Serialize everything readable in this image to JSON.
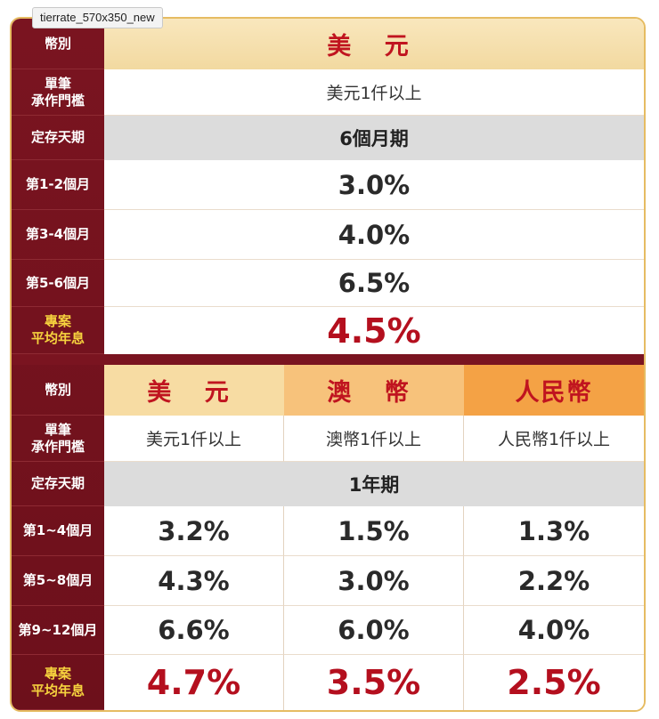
{
  "tab_label": "tierrate_570x350_new",
  "colors": {
    "sidebar": "#7a1420",
    "gold_text": "#f6d23e",
    "red_text": "#b40f1e"
  },
  "table1": {
    "labels": {
      "currency": "幣別",
      "threshold": "單筆\n承作門檻",
      "term": "定存天期",
      "m12": "第1-2個月",
      "m34": "第3-4個月",
      "m56": "第5-6個月",
      "avg": "專案\n平均年息"
    },
    "currency": "美 元",
    "threshold": "美元1仟以上",
    "term": "6個月期",
    "m12": "3.0%",
    "m34": "4.0%",
    "m56": "6.5%",
    "avg": "4.5%"
  },
  "table2": {
    "labels": {
      "currency": "幣別",
      "threshold": "單筆\n承作門檻",
      "term": "定存天期",
      "m14": "第1~4個月",
      "m58": "第5~8個月",
      "m912": "第9~12個月",
      "avg": "專案\n平均年息"
    },
    "term": "1年期",
    "columns": [
      {
        "name": "美 元",
        "threshold": "美元1仟以上",
        "m14": "3.2%",
        "m58": "4.3%",
        "m912": "6.6%",
        "avg": "4.7%"
      },
      {
        "name": "澳 幣",
        "threshold": "澳幣1仟以上",
        "m14": "1.5%",
        "m58": "3.0%",
        "m912": "6.0%",
        "avg": "3.5%"
      },
      {
        "name": "人民幣",
        "threshold": "人民幣1仟以上",
        "m14": "1.3%",
        "m58": "2.2%",
        "m912": "4.0%",
        "avg": "2.5%"
      }
    ]
  }
}
